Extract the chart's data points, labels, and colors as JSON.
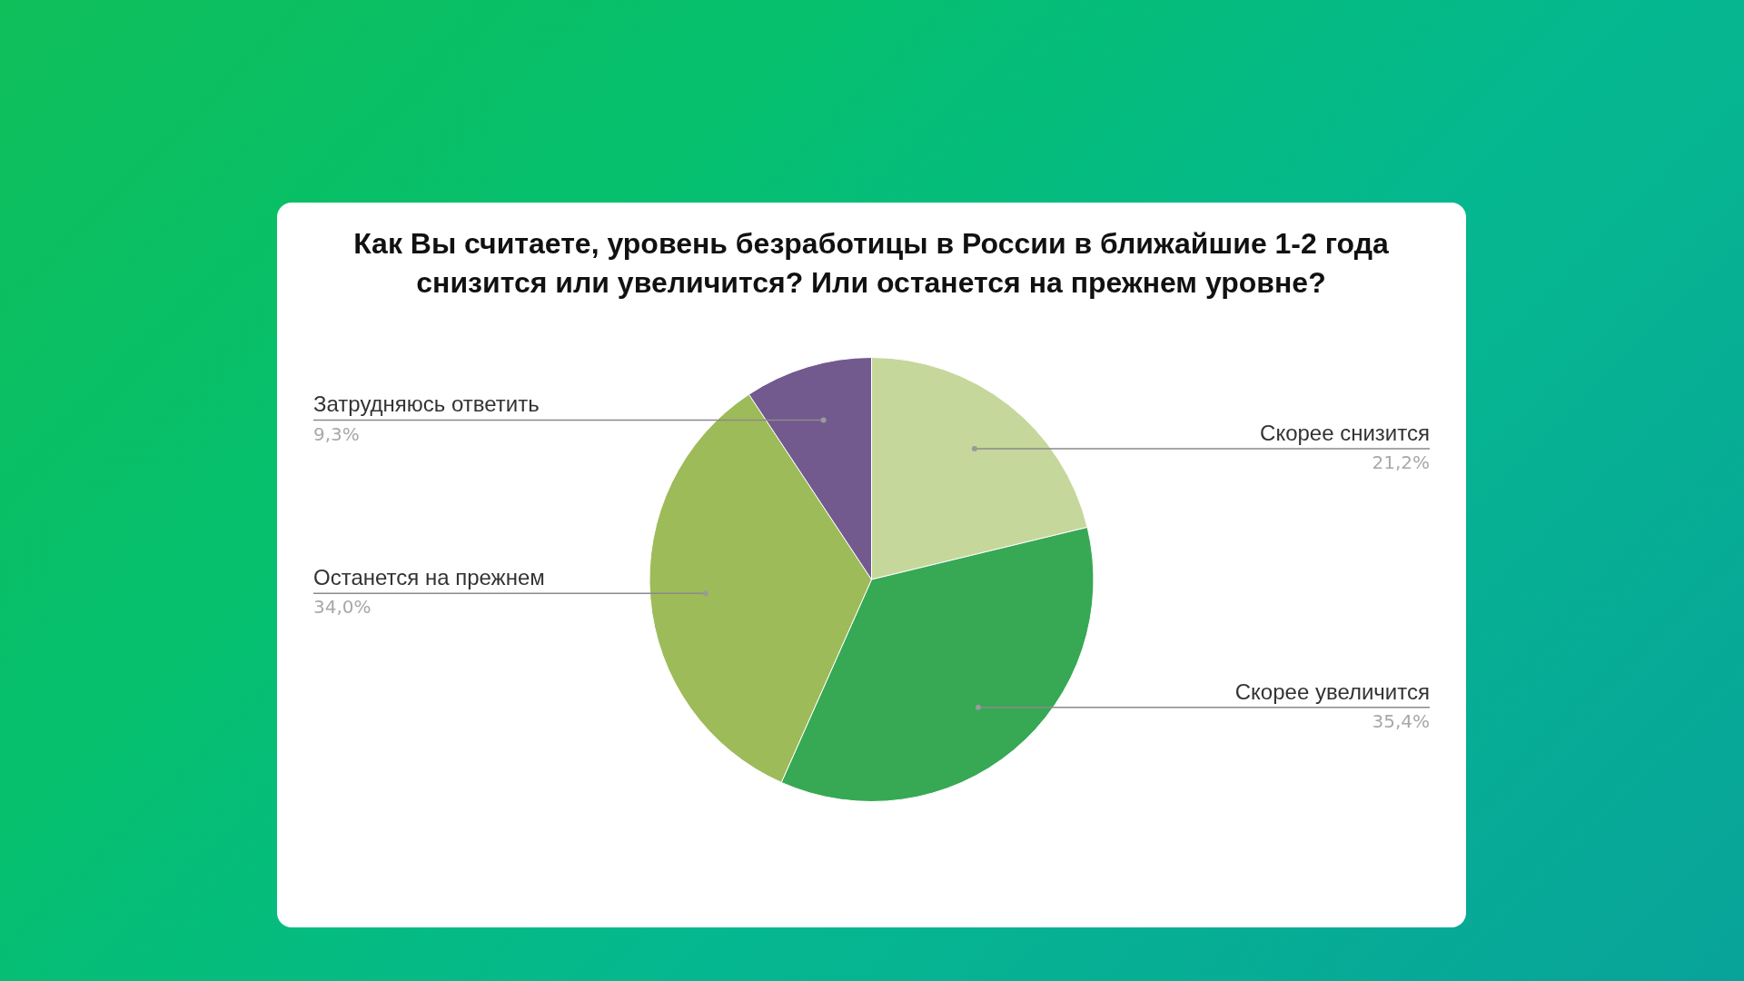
{
  "chart_data": {
    "type": "pie",
    "title": "Как Вы считаете, уровень безработицы в России в ближайшие 1-2 года снизится или увеличится? Или останется на прежнем уровне?",
    "categories": [
      "Скорее снизится",
      "Скорее увеличится",
      "Останется на прежнем",
      "Затрудняюсь ответить"
    ],
    "values": [
      21.2,
      35.4,
      34.0,
      9.3
    ],
    "colors": [
      "#c5d79b",
      "#37a854",
      "#9dbb59",
      "#72598e"
    ],
    "value_labels": [
      "21,2%",
      "35,4%",
      "34,0%",
      "9,3%"
    ]
  }
}
